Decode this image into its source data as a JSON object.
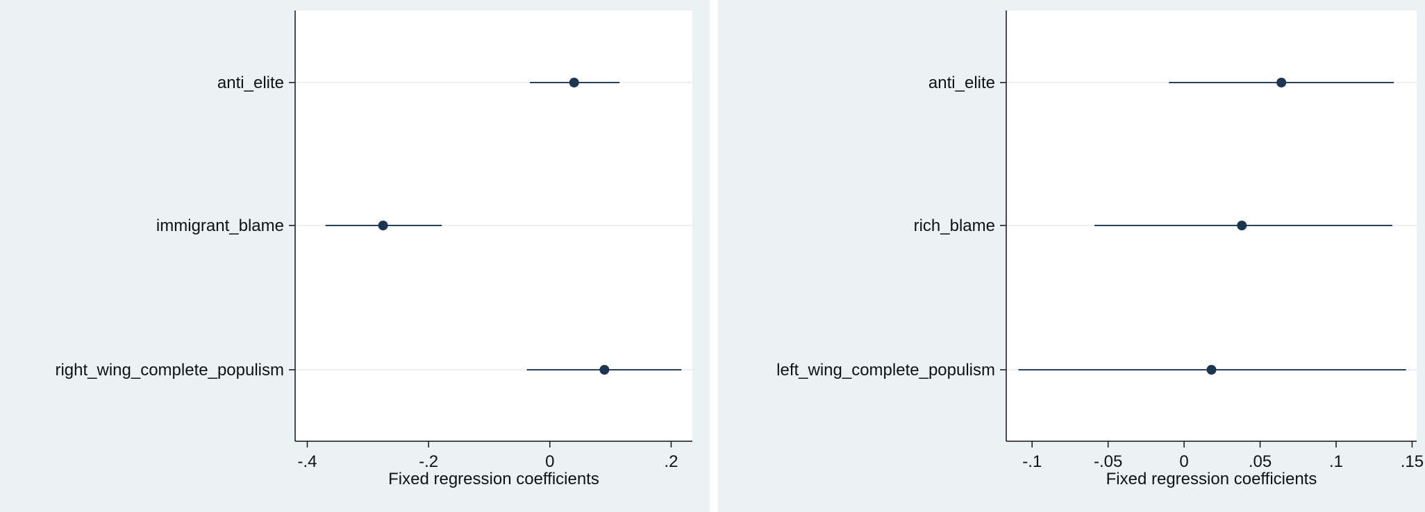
{
  "chart_data": [
    {
      "type": "scatter",
      "subtype": "coefficient_plot",
      "xlabel": "Fixed regression coefficients",
      "xlim": [
        -0.42,
        0.235
      ],
      "xticks": [
        {
          "value": -0.4,
          "label": "-.4"
        },
        {
          "value": -0.2,
          "label": "-.2"
        },
        {
          "value": 0,
          "label": "0"
        },
        {
          "value": 0.2,
          "label": ".2"
        }
      ],
      "grid": true,
      "categories": [
        "anti_elite",
        "immigrant_blame",
        "right_wing_complete_populism"
      ],
      "estimates": [
        0.04,
        -0.275,
        0.09
      ],
      "ci_low": [
        -0.033,
        -0.37,
        -0.038
      ],
      "ci_high": [
        0.115,
        -0.178,
        0.217
      ],
      "colors": {
        "point": "#1c3550",
        "line": "#26405e",
        "grid": "#e6ebec",
        "background": "#eaf2f3",
        "plot_background": "#ffffff"
      }
    },
    {
      "type": "scatter",
      "subtype": "coefficient_plot",
      "xlabel": "Fixed regression coefficients",
      "xlim": [
        -0.117,
        0.153
      ],
      "xticks": [
        {
          "value": -0.1,
          "label": "-.1"
        },
        {
          "value": -0.05,
          "label": "-.05"
        },
        {
          "value": 0,
          "label": "0"
        },
        {
          "value": 0.05,
          "label": ".05"
        },
        {
          "value": 0.1,
          "label": ".1"
        },
        {
          "value": 0.15,
          "label": ".15"
        }
      ],
      "grid": true,
      "categories": [
        "anti_elite",
        "rich_blame",
        "left_wing_complete_populism"
      ],
      "estimates": [
        0.064,
        0.038,
        0.018
      ],
      "ci_low": [
        -0.01,
        -0.059,
        -0.109
      ],
      "ci_high": [
        0.138,
        0.137,
        0.146
      ],
      "colors": {
        "point": "#1c3550",
        "line": "#26405e",
        "grid": "#e6ebec",
        "background": "#eaf2f3",
        "plot_background": "#ffffff"
      }
    }
  ]
}
